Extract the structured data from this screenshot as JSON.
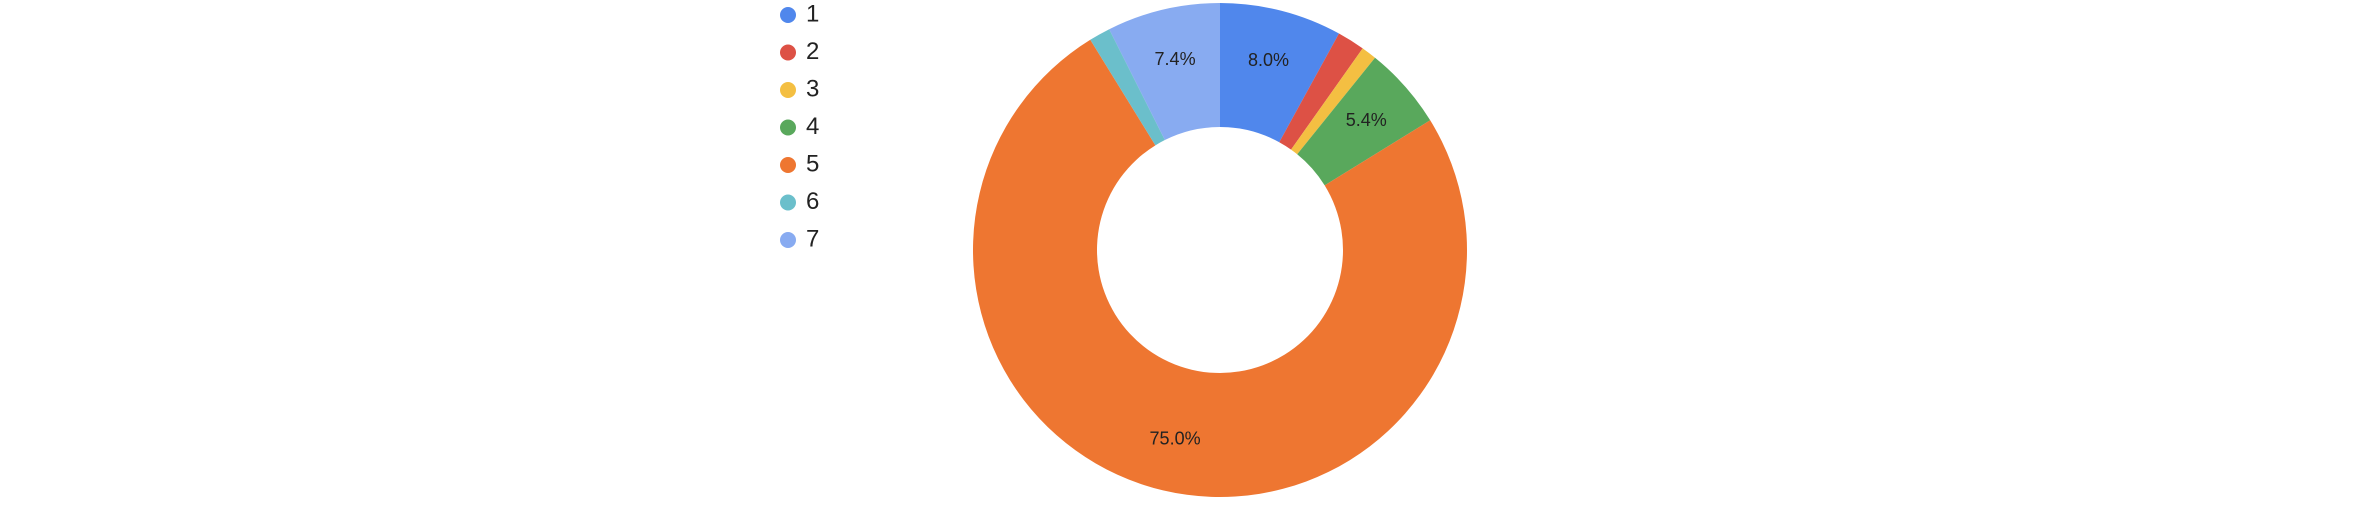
{
  "chart_data": {
    "type": "donut",
    "categories": [
      "1",
      "2",
      "3",
      "4",
      "5",
      "6",
      "7"
    ],
    "values": [
      8.0,
      1.8,
      1.0,
      5.4,
      75.0,
      1.4,
      7.4
    ],
    "value_labels": [
      "8.0%",
      null,
      null,
      "5.4%",
      "75.0%",
      null,
      "7.4%"
    ],
    "colors": [
      "#5087ec",
      "#dd5145",
      "#f4bf42",
      "#59a85c",
      "#ee7631",
      "#6bbfcb",
      "#88abf1"
    ],
    "legend": "top-left"
  }
}
